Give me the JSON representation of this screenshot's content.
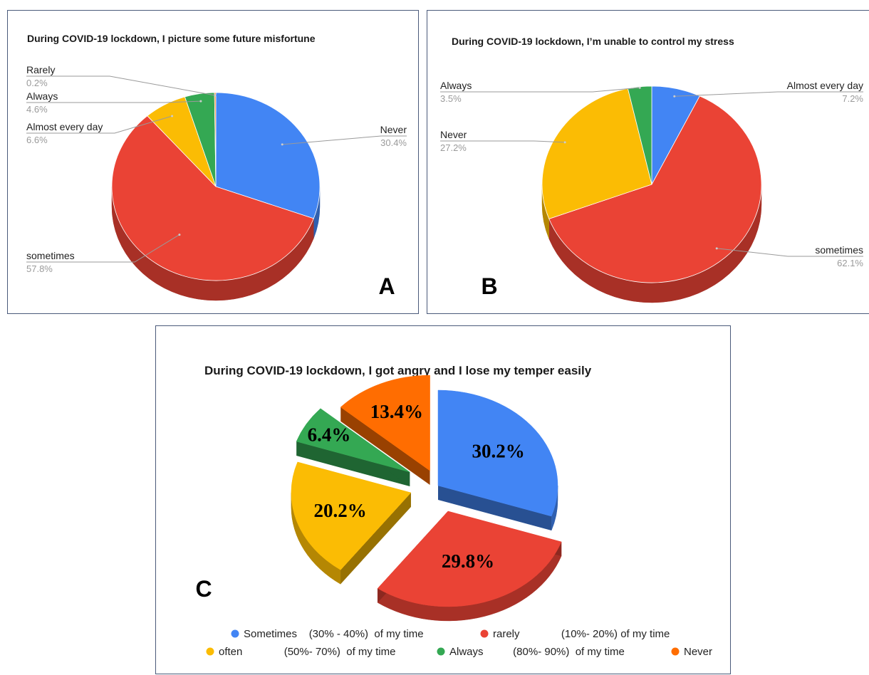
{
  "chart_data": [
    {
      "id": "A",
      "type": "pie",
      "title": "During COVID-19 lockdown, I picture some future misfortune",
      "panel_letter": "A",
      "slices": [
        {
          "name": "Never",
          "value": 30.4,
          "label": "30.4%",
          "color": "#4285f4"
        },
        {
          "name": "sometimes",
          "value": 57.8,
          "label": "57.8%",
          "color": "#ea4335"
        },
        {
          "name": "Almost every day",
          "value": 6.6,
          "label": "6.6%",
          "color": "#fbbc04"
        },
        {
          "name": "Always",
          "value": 4.6,
          "label": "4.6%",
          "color": "#34a853"
        },
        {
          "name": "Rarely",
          "value": 0.2,
          "label": "0.2%",
          "color": "#ff6d01"
        }
      ]
    },
    {
      "id": "B",
      "type": "pie",
      "title": "During COVID-19 lockdown, I’m unable to control my stress",
      "panel_letter": "B",
      "slices": [
        {
          "name": "Almost every day",
          "value": 7.2,
          "label": "7.2%",
          "color": "#4285f4"
        },
        {
          "name": "sometimes",
          "value": 62.1,
          "label": "62.1%",
          "color": "#ea4335"
        },
        {
          "name": "Never",
          "value": 27.2,
          "label": "27.2%",
          "color": "#fbbc04"
        },
        {
          "name": "Always",
          "value": 3.5,
          "label": "3.5%",
          "color": "#34a853"
        }
      ]
    },
    {
      "id": "C",
      "type": "pie",
      "title": "During COVID-19 lockdown, I got angry and I lose my temper easily",
      "panel_letter": "C",
      "slices": [
        {
          "name": "Sometimes",
          "value": 30.2,
          "label": "30.2%",
          "color": "#4285f4"
        },
        {
          "name": "rarely",
          "value": 29.8,
          "label": "29.8%",
          "color": "#ea4335"
        },
        {
          "name": "often",
          "value": 20.2,
          "label": "20.2%",
          "color": "#fbbc04"
        },
        {
          "name": "Always",
          "value": 6.4,
          "label": "6.4%",
          "color": "#34a853"
        },
        {
          "name": "Never",
          "value": 13.4,
          "label": "13.4%",
          "color": "#ff6d01"
        }
      ],
      "legend": [
        {
          "text": "Sometimes    (30% - 40%)  of my time",
          "color": "#4285f4"
        },
        {
          "text": "rarely              (10%- 20%) of my time",
          "color": "#ea4335"
        },
        {
          "text": "often              (50%- 70%)  of my time",
          "color": "#fbbc04"
        },
        {
          "text": "Always          (80%- 90%)  of my time",
          "color": "#34a853"
        },
        {
          "text": "Never",
          "color": "#ff6d01"
        }
      ]
    }
  ]
}
